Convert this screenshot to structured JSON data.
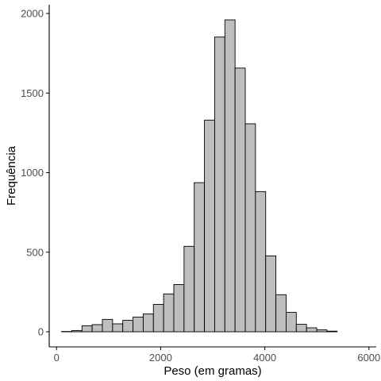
{
  "chart_data": {
    "type": "bar",
    "title": "",
    "xlabel": "Peso (em gramas)",
    "ylabel": "Frequência",
    "xlim": [
      -140,
      6140
    ],
    "ylim": [
      0,
      2050
    ],
    "x_ticks": [
      0,
      2000,
      4000,
      6000
    ],
    "x_tick_labels": [
      "0",
      "2000",
      "4000",
      "6000"
    ],
    "y_ticks": [
      0,
      500,
      1000,
      1500,
      2000
    ],
    "y_tick_labels": [
      "0",
      "500",
      "1000",
      "1500",
      "2000"
    ],
    "grid": false,
    "legend": "none",
    "bin_width": 196,
    "bins": [
      {
        "x_start": 97,
        "x_end": 293,
        "count": 2
      },
      {
        "x_start": 293,
        "x_end": 489,
        "count": 8
      },
      {
        "x_start": 489,
        "x_end": 685,
        "count": 38
      },
      {
        "x_start": 685,
        "x_end": 881,
        "count": 45
      },
      {
        "x_start": 881,
        "x_end": 1077,
        "count": 78
      },
      {
        "x_start": 1077,
        "x_end": 1273,
        "count": 50
      },
      {
        "x_start": 1273,
        "x_end": 1469,
        "count": 72
      },
      {
        "x_start": 1469,
        "x_end": 1665,
        "count": 92
      },
      {
        "x_start": 1665,
        "x_end": 1861,
        "count": 112
      },
      {
        "x_start": 1861,
        "x_end": 2057,
        "count": 172
      },
      {
        "x_start": 2057,
        "x_end": 2253,
        "count": 238
      },
      {
        "x_start": 2253,
        "x_end": 2449,
        "count": 297
      },
      {
        "x_start": 2449,
        "x_end": 2645,
        "count": 537
      },
      {
        "x_start": 2645,
        "x_end": 2841,
        "count": 937
      },
      {
        "x_start": 2841,
        "x_end": 3037,
        "count": 1330
      },
      {
        "x_start": 3037,
        "x_end": 3233,
        "count": 1852
      },
      {
        "x_start": 3233,
        "x_end": 3429,
        "count": 1960
      },
      {
        "x_start": 3429,
        "x_end": 3625,
        "count": 1657
      },
      {
        "x_start": 3625,
        "x_end": 3821,
        "count": 1307
      },
      {
        "x_start": 3821,
        "x_end": 4017,
        "count": 881
      },
      {
        "x_start": 4017,
        "x_end": 4213,
        "count": 477
      },
      {
        "x_start": 4213,
        "x_end": 4409,
        "count": 233
      },
      {
        "x_start": 4409,
        "x_end": 4605,
        "count": 122
      },
      {
        "x_start": 4605,
        "x_end": 4801,
        "count": 47
      },
      {
        "x_start": 4801,
        "x_end": 4997,
        "count": 25
      },
      {
        "x_start": 4997,
        "x_end": 5193,
        "count": 12
      },
      {
        "x_start": 5193,
        "x_end": 5389,
        "count": 4
      },
      {
        "x_start": 5389,
        "x_end": 5585,
        "count": 0
      },
      {
        "x_start": 5585,
        "x_end": 5781,
        "count": 0
      }
    ],
    "colors": {
      "bar_fill": "#bebebe",
      "bar_stroke": "#000000",
      "axis_line": "#000000",
      "tick_label": "#4d4d4d",
      "axis_title": "#000000",
      "background": "#ffffff"
    }
  }
}
